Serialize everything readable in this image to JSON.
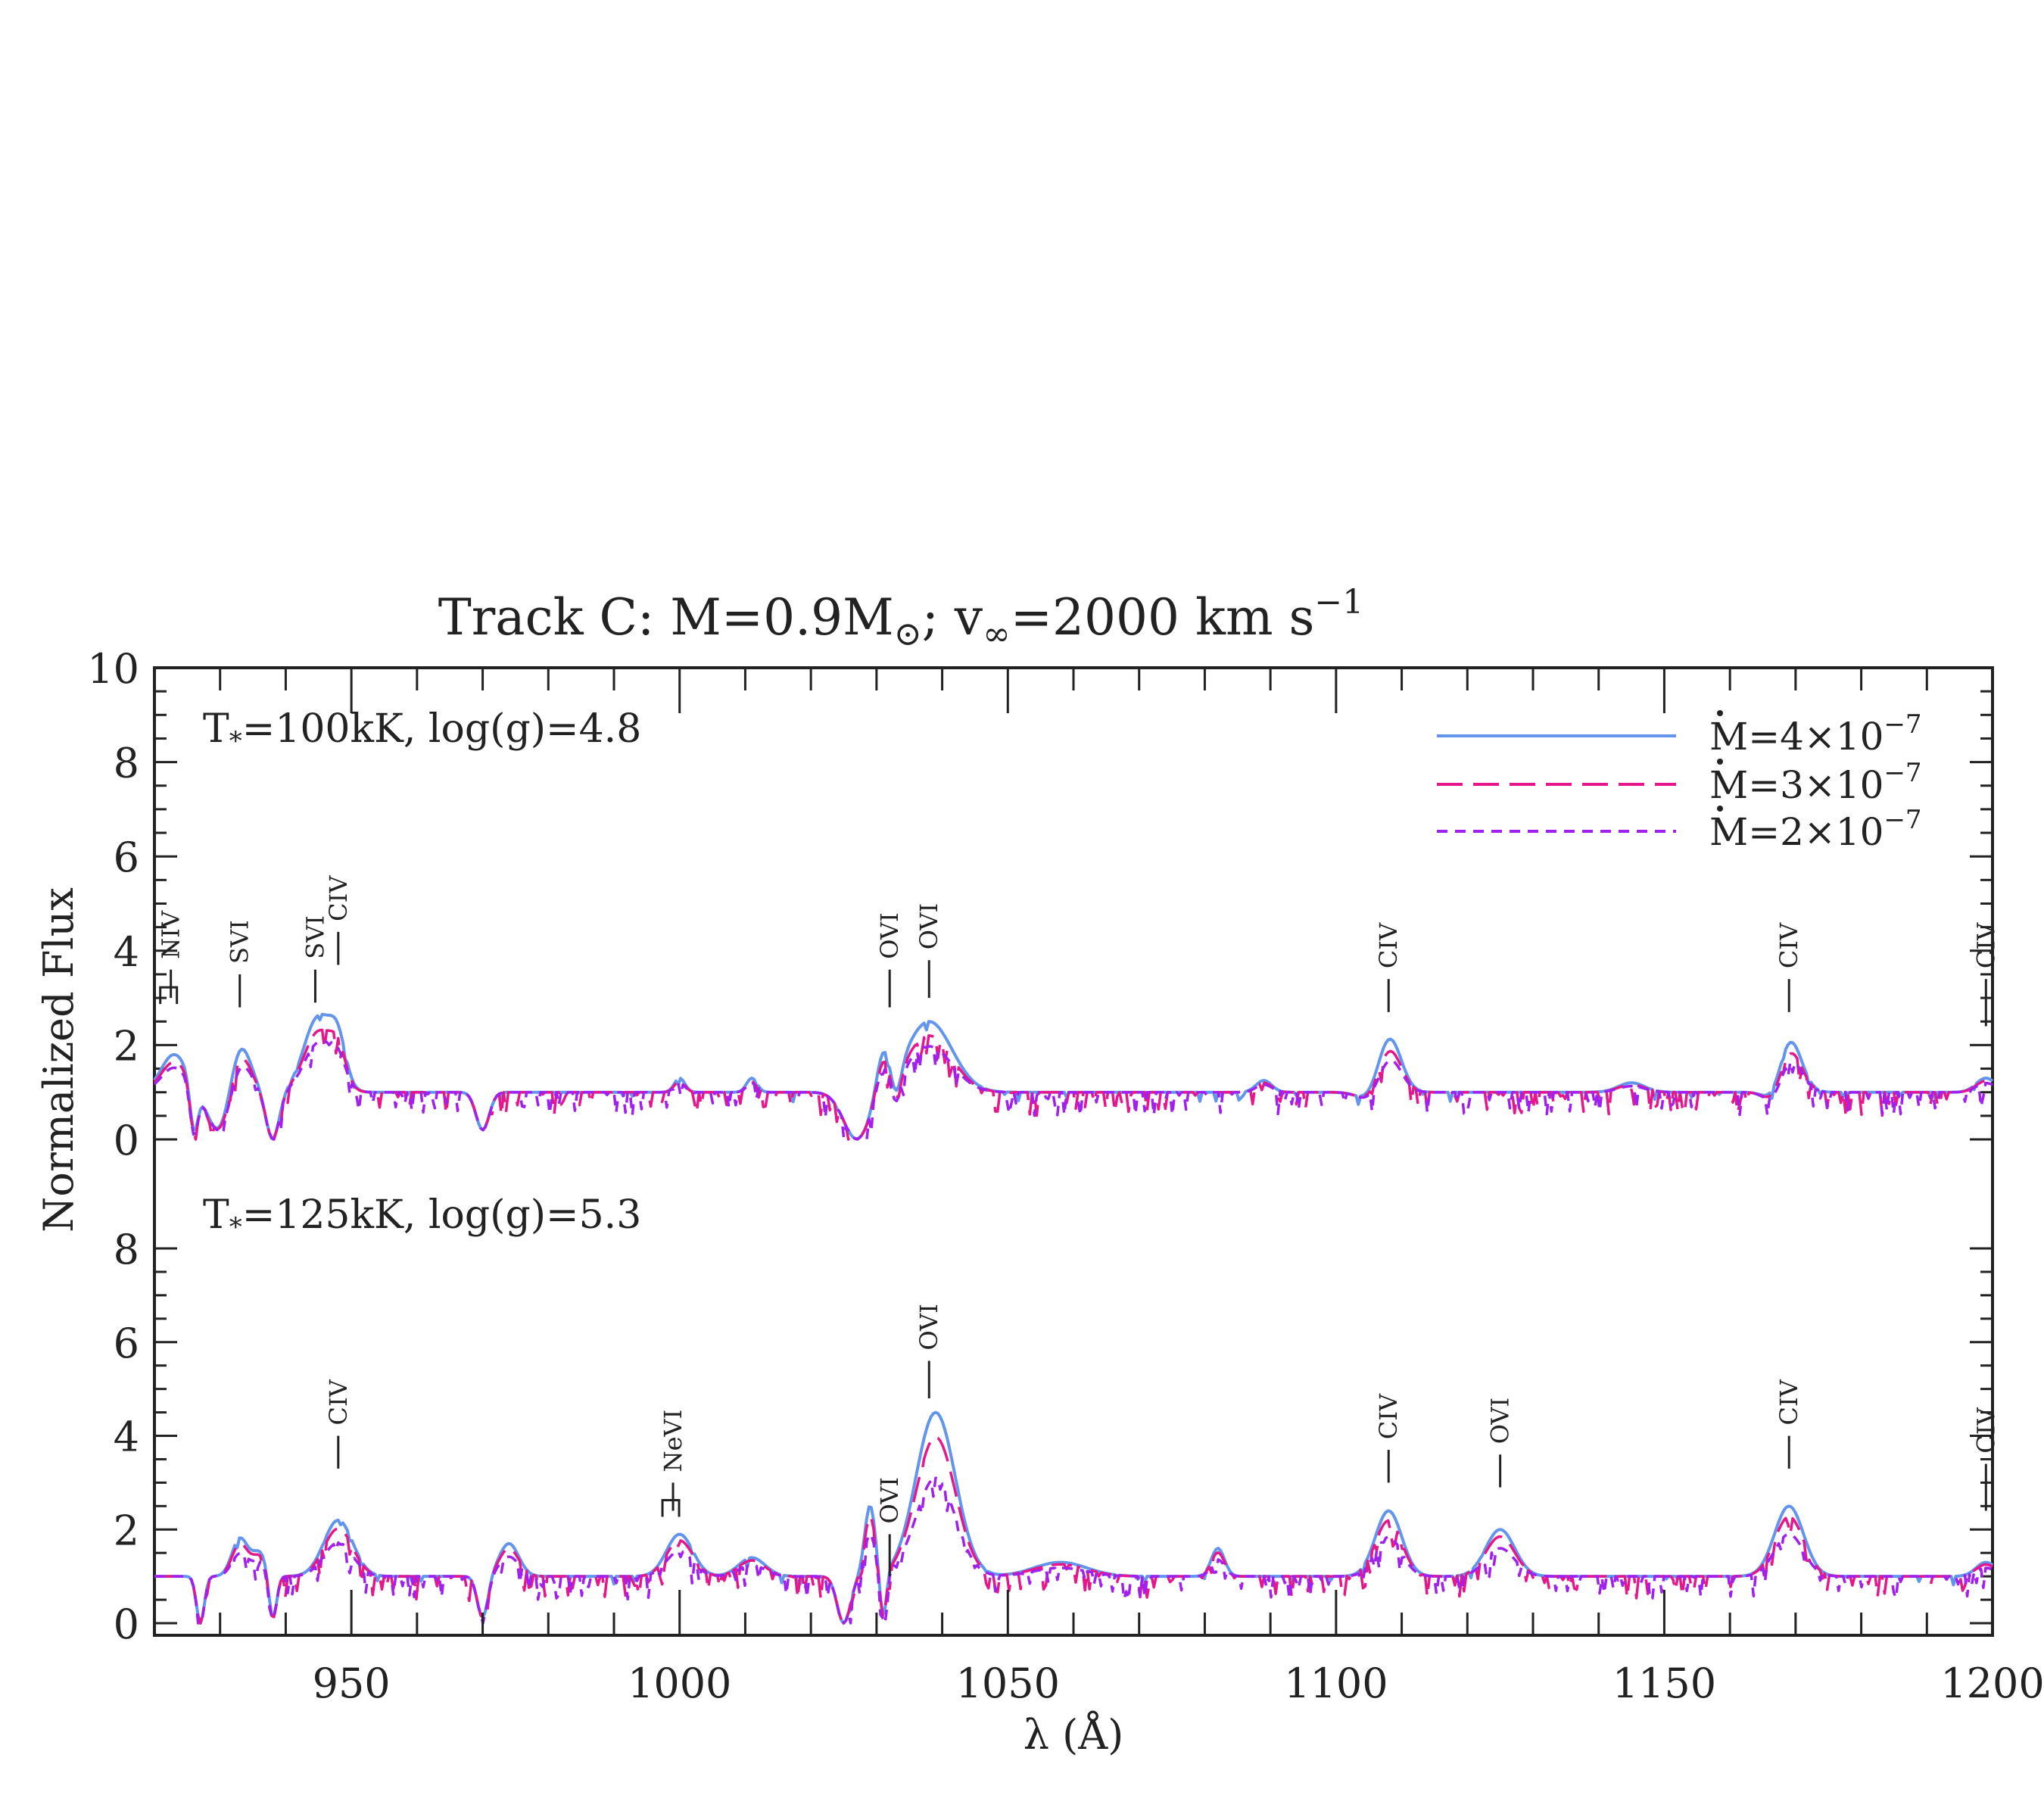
{
  "chart_data": {
    "type": "line",
    "title": "Track C: M=0.9M",
    "title_sun": "⊙",
    "title_tail": "; v",
    "title_inf": "∞",
    "title_end": "=2000 km s",
    "title_sup": "−1",
    "xlabel": "λ (Å)",
    "ylabel": "Normalized Flux",
    "xlim": [
      920,
      1200
    ],
    "x_ticks": [
      950,
      1000,
      1050,
      1100,
      1150,
      1200
    ],
    "y_ticks_top": [
      "0",
      "2",
      "4",
      "6",
      "8",
      "10"
    ],
    "y_ticks_bottom": [
      "0",
      "2",
      "4",
      "6",
      "8"
    ],
    "grid": false,
    "legend_position": "top-right",
    "series_styles": [
      {
        "label_prefix": "M",
        "label_eq": "=4×10",
        "label_exp": "−7",
        "color": "#6495ed",
        "dash": "none"
      },
      {
        "label_prefix": "M",
        "label_eq": "=3×10",
        "label_exp": "−7",
        "color": "#e6178a",
        "dash": "long"
      },
      {
        "label_prefix": "M",
        "label_eq": "=2×10",
        "label_exp": "−7",
        "color": "#a020f0",
        "dash": "short"
      }
    ],
    "panels": [
      {
        "label_T": "T",
        "label_star": "*",
        "label_rest": "=100kK, log(g)=4.8",
        "ylim": [
          0,
          10
        ],
        "continuum": 1.0,
        "features": [
          {
            "x": 923,
            "amp": 0.8,
            "w": 2.0
          },
          {
            "x": 926,
            "amp": -1.0,
            "w": 0.6,
            "trough": true
          },
          {
            "x": 930,
            "amp": -0.9,
            "w": 1.8
          },
          {
            "x": 933,
            "amp": 1.1,
            "w": 1.6
          },
          {
            "x": 938,
            "amp": -1.0,
            "w": 1.0
          },
          {
            "x": 945,
            "amp": 1.6,
            "w": 2.2
          },
          {
            "x": 948,
            "amp": 0.8,
            "w": 1.2
          },
          {
            "x": 970,
            "amp": -0.8,
            "w": 1.0
          },
          {
            "x": 1000,
            "amp": 0.3,
            "w": 0.8
          },
          {
            "x": 1011,
            "amp": 0.3,
            "w": 0.8
          },
          {
            "x": 1027,
            "amp": -1.0,
            "w": 2.0
          },
          {
            "x": 1031,
            "amp": 0.8,
            "w": 1.0
          },
          {
            "x": 1033,
            "amp": -0.6,
            "w": 0.8
          },
          {
            "x": 1038,
            "amp": 1.5,
            "w": 3.5
          },
          {
            "x": 1089,
            "amp": 0.25,
            "w": 1.2
          },
          {
            "x": 1106,
            "amp": -0.3,
            "w": 2.0
          },
          {
            "x": 1108,
            "amp": 1.3,
            "w": 1.8
          },
          {
            "x": 1145,
            "amp": 0.2,
            "w": 2.0
          },
          {
            "x": 1167,
            "amp": -0.4,
            "w": 1.5
          },
          {
            "x": 1169,
            "amp": 1.2,
            "w": 1.8
          },
          {
            "x": 1199,
            "amp": 0.3,
            "w": 1.5
          }
        ],
        "scales": [
          1.0,
          0.8,
          0.65
        ],
        "annotations": [
          {
            "text": "NIV",
            "x": 922.5,
            "tick_y": [
              3.0,
              3.6
            ],
            "bracket": true
          },
          {
            "text": "SVI",
            "x": 933,
            "tick_y": [
              2.8,
              3.5
            ]
          },
          {
            "text": "SVI",
            "x": 944.5,
            "tick_y": [
              2.9,
              3.6
            ]
          },
          {
            "text": "CIV",
            "x": 948,
            "tick_y": [
              3.7,
              4.4
            ]
          },
          {
            "text": "OVI",
            "x": 1032,
            "tick_y": [
              2.8,
              3.6
            ]
          },
          {
            "text": "OVI",
            "x": 1038,
            "tick_y": [
              3.0,
              3.8
            ]
          },
          {
            "text": "CIV",
            "x": 1108,
            "tick_y": [
              2.7,
              3.4
            ]
          },
          {
            "text": "CIV",
            "x": 1169,
            "tick_y": [
              2.7,
              3.4
            ]
          },
          {
            "text": "CIV",
            "x": 1199,
            "tick_y": [
              2.4,
              3.4
            ]
          }
        ]
      },
      {
        "label_T": "T",
        "label_star": "*",
        "label_rest": "=125kK, log(g)=5.3",
        "ylim": [
          0,
          8
        ],
        "continuum": 1.0,
        "features": [
          {
            "x": 927,
            "amp": -1.0,
            "w": 0.6
          },
          {
            "x": 933,
            "amp": 0.8,
            "w": 1.2
          },
          {
            "x": 936,
            "amp": 0.5,
            "w": 1.2
          },
          {
            "x": 938,
            "amp": -1.0,
            "w": 0.6
          },
          {
            "x": 948,
            "amp": 1.2,
            "w": 2.2
          },
          {
            "x": 970,
            "amp": -0.9,
            "w": 0.8
          },
          {
            "x": 974,
            "amp": 0.7,
            "w": 1.5
          },
          {
            "x": 1000,
            "amp": 0.9,
            "w": 2.0
          },
          {
            "x": 1011,
            "amp": 0.4,
            "w": 2.0
          },
          {
            "x": 1025,
            "amp": -1.0,
            "w": 1.0
          },
          {
            "x": 1029,
            "amp": 1.5,
            "w": 0.8
          },
          {
            "x": 1031,
            "amp": -1.0,
            "w": 0.5
          },
          {
            "x": 1039,
            "amp": 3.5,
            "w": 3.0
          },
          {
            "x": 1058,
            "amp": 0.3,
            "w": 4.0
          },
          {
            "x": 1082,
            "amp": 0.6,
            "w": 1.0
          },
          {
            "x": 1108,
            "amp": 1.4,
            "w": 2.0
          },
          {
            "x": 1125,
            "amp": 1.0,
            "w": 2.2
          },
          {
            "x": 1169,
            "amp": 1.5,
            "w": 2.2
          },
          {
            "x": 1199,
            "amp": 0.3,
            "w": 1.5
          }
        ],
        "scales": [
          1.0,
          0.85,
          0.6
        ],
        "annotations": [
          {
            "text": "CIV",
            "x": 948,
            "tick_y": [
              3.3,
              4.0
            ]
          },
          {
            "text": "NeVI",
            "x": 999,
            "tick_y": [
              2.4,
              3.0
            ],
            "bracket": true
          },
          {
            "text": "OVI",
            "x": 1032,
            "tick_y": [
              1.0,
              1.9
            ]
          },
          {
            "text": "OVI",
            "x": 1038,
            "tick_y": [
              4.8,
              5.6
            ]
          },
          {
            "text": "CIV",
            "x": 1108,
            "tick_y": [
              3.0,
              3.7
            ]
          },
          {
            "text": "OVI",
            "x": 1125,
            "tick_y": [
              2.9,
              3.6
            ]
          },
          {
            "text": "CIV",
            "x": 1169,
            "tick_y": [
              3.3,
              4.0
            ]
          },
          {
            "text": "CIV",
            "x": 1199,
            "tick_y": [
              2.4,
              3.4
            ]
          }
        ]
      }
    ]
  }
}
